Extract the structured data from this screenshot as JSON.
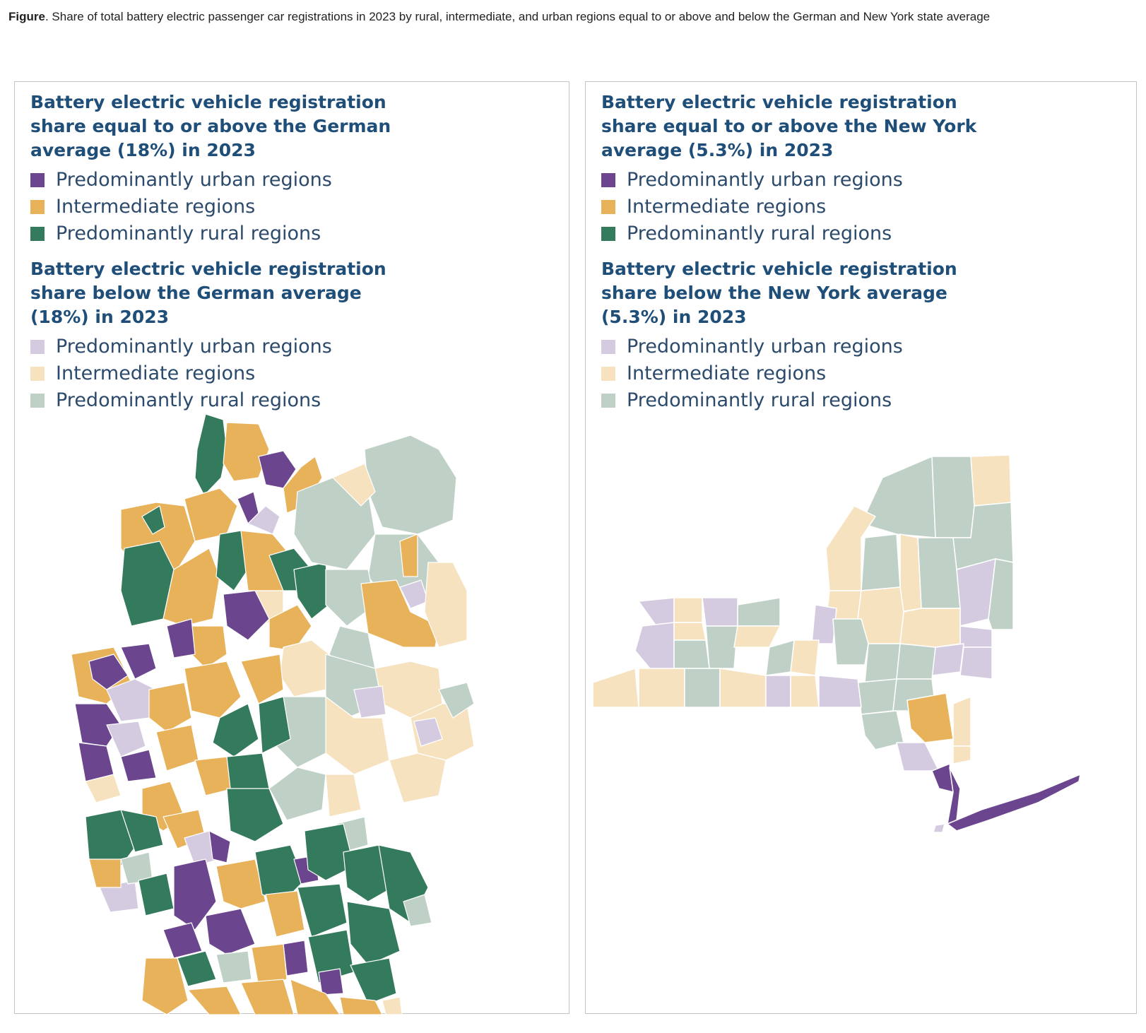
{
  "caption": {
    "bold": "Figure",
    "text": ". Share of total battery electric passenger car registrations in 2023 by rural, intermediate, and urban regions equal to or above and below the German and New York state average"
  },
  "colors": {
    "urban_above": "#6b468f",
    "intermediate_above": "#e8b25a",
    "rural_above": "#347a5d",
    "urban_below": "#d4cbe0",
    "intermediate_below": "#f7e2c0",
    "rural_below": "#bfd1c6"
  },
  "germany": {
    "above_title": "Battery electric vehicle registration share equal to or above the German average (18%) in 2023",
    "above_items": [
      "Predominantly urban regions",
      "Intermediate regions",
      "Predominantly rural regions"
    ],
    "below_title": "Battery electric vehicle registration share below the German average (18%) in 2023",
    "below_items": [
      "Predominantly urban regions",
      "Intermediate regions",
      "Predominantly rural regions"
    ]
  },
  "new_york": {
    "above_title": "Battery electric vehicle registration share equal to or above the New York average (5.3%) in 2023",
    "above_items": [
      "Predominantly urban regions",
      "Intermediate regions",
      "Predominantly rural regions"
    ],
    "below_title": "Battery electric vehicle registration share below the New York average (5.3%) in 2023",
    "below_items": [
      "Predominantly urban regions",
      "Intermediate regions",
      "Predominantly rural regions"
    ]
  }
}
